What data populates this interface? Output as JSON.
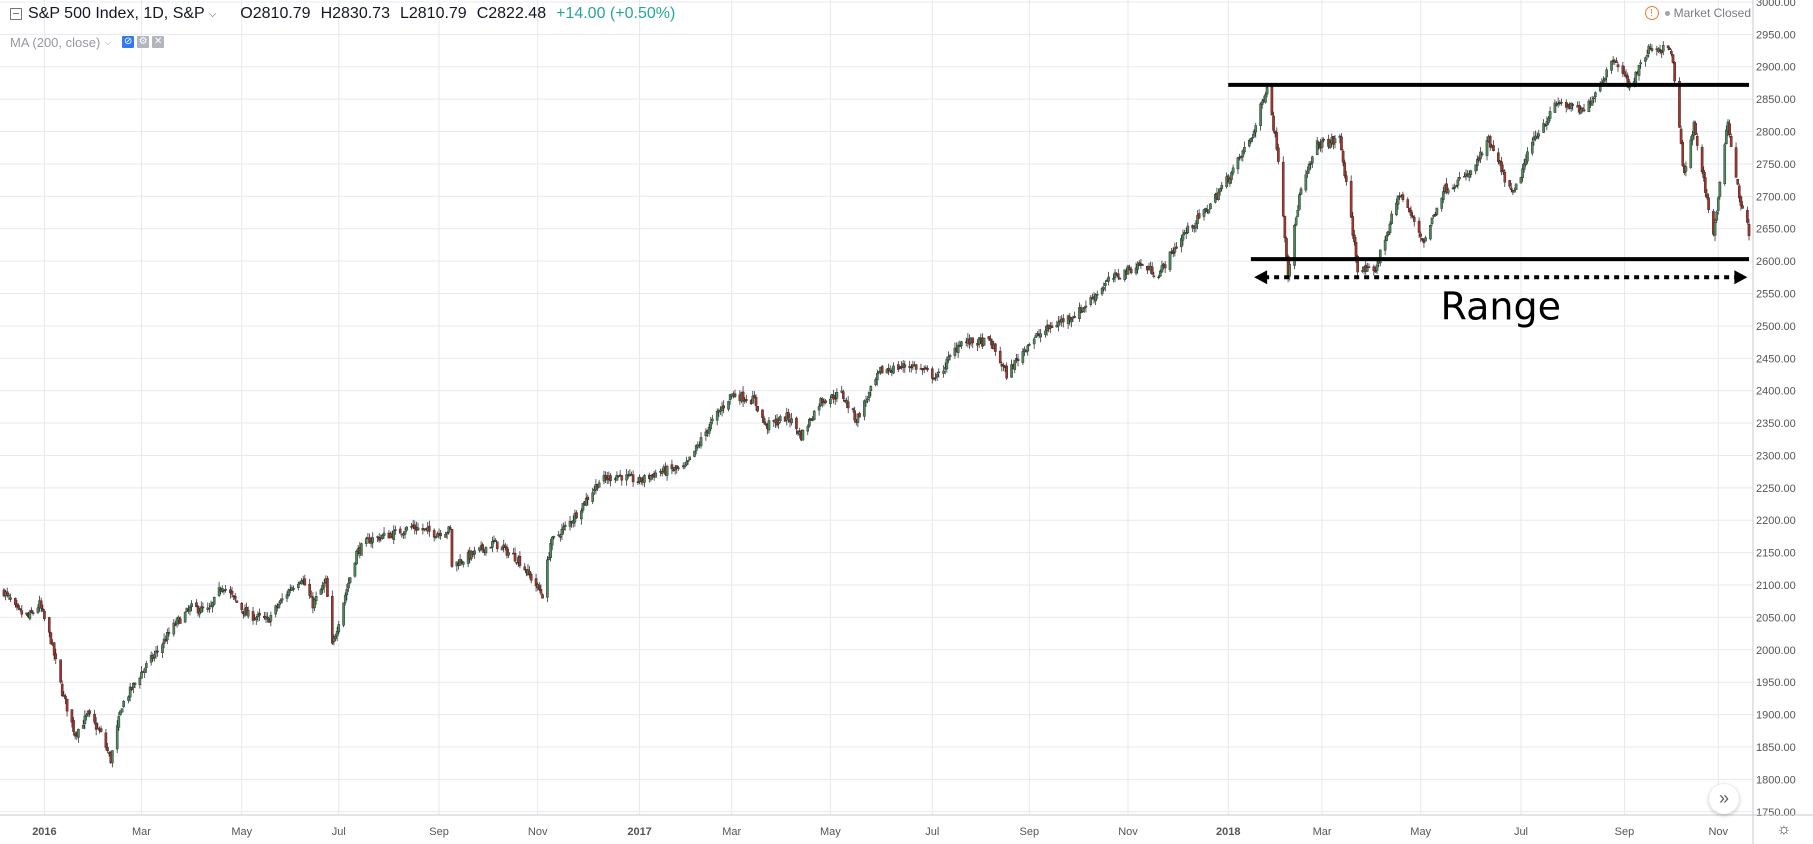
{
  "header": {
    "symbol": "S&P 500 Index, 1D, S&P",
    "open": "O2810.79",
    "high": "H2830.73",
    "low": "L2810.79",
    "close": "C2822.48",
    "change": "+14.00 (+0.50%)",
    "market_status": "Market Closed"
  },
  "indicator": {
    "label": "MA (200, close)"
  },
  "colors": {
    "up": "#4a8a5a",
    "down": "#a8332a",
    "grid": "#e8e9ed",
    "axis_text": "#555555",
    "annotation": "#000000"
  },
  "chart_data": {
    "type": "candlestick",
    "x_ticks": [
      {
        "label": "2016",
        "date": "2016-01-01",
        "bold": true
      },
      {
        "label": "Mar",
        "date": "2016-03-01"
      },
      {
        "label": "May",
        "date": "2016-05-02"
      },
      {
        "label": "Jul",
        "date": "2016-07-01"
      },
      {
        "label": "Sep",
        "date": "2016-09-01"
      },
      {
        "label": "Nov",
        "date": "2016-11-01"
      },
      {
        "label": "2017",
        "date": "2017-01-03",
        "bold": true
      },
      {
        "label": "Mar",
        "date": "2017-03-01"
      },
      {
        "label": "May",
        "date": "2017-05-01"
      },
      {
        "label": "Jul",
        "date": "2017-07-03"
      },
      {
        "label": "Sep",
        "date": "2017-09-01"
      },
      {
        "label": "Nov",
        "date": "2017-11-01"
      },
      {
        "label": "2018",
        "date": "2018-01-02",
        "bold": true
      },
      {
        "label": "Mar",
        "date": "2018-03-01"
      },
      {
        "label": "May",
        "date": "2018-05-01"
      },
      {
        "label": "Jul",
        "date": "2018-07-02"
      },
      {
        "label": "Sep",
        "date": "2018-09-04"
      },
      {
        "label": "Nov",
        "date": "2018-11-01"
      }
    ],
    "x_range": [
      "2015-12-07",
      "2018-11-20"
    ],
    "y_ticks": [
      "1750.00",
      "1800.00",
      "1850.00",
      "1900.00",
      "1950.00",
      "2000.00",
      "2050.00",
      "2100.00",
      "2150.00",
      "2200.00",
      "2250.00",
      "2300.00",
      "2350.00",
      "2400.00",
      "2450.00",
      "2500.00",
      "2550.00",
      "2600.00",
      "2650.00",
      "2700.00",
      "2750.00",
      "2800.00",
      "2850.00",
      "2900.00",
      "2950.00",
      "3000.00"
    ],
    "ylim": [
      1745,
      3003
    ],
    "close_path": [
      [
        "2015-12-07",
        2090
      ],
      [
        "2015-12-15",
        2060
      ],
      [
        "2015-12-22",
        2050
      ],
      [
        "2015-12-29",
        2070
      ],
      [
        "2016-01-05",
        2015
      ],
      [
        "2016-01-12",
        1935
      ],
      [
        "2016-01-20",
        1870
      ],
      [
        "2016-01-28",
        1900
      ],
      [
        "2016-02-05",
        1870
      ],
      [
        "2016-02-11",
        1830
      ],
      [
        "2016-02-18",
        1915
      ],
      [
        "2016-03-01",
        1965
      ],
      [
        "2016-03-10",
        1995
      ],
      [
        "2016-03-22",
        2040
      ],
      [
        "2016-04-01",
        2065
      ],
      [
        "2016-04-12",
        2060
      ],
      [
        "2016-04-20",
        2100
      ],
      [
        "2016-05-05",
        2055
      ],
      [
        "2016-05-18",
        2045
      ],
      [
        "2016-06-01",
        2095
      ],
      [
        "2016-06-08",
        2112
      ],
      [
        "2016-06-15",
        2070
      ],
      [
        "2016-06-23",
        2105
      ],
      [
        "2016-06-27",
        2005
      ],
      [
        "2016-07-05",
        2085
      ],
      [
        "2016-07-12",
        2150
      ],
      [
        "2016-07-20",
        2170
      ],
      [
        "2016-08-05",
        2180
      ],
      [
        "2016-08-15",
        2190
      ],
      [
        "2016-08-29",
        2180
      ],
      [
        "2016-09-08",
        2185
      ],
      [
        "2016-09-09",
        2130
      ],
      [
        "2016-09-20",
        2145
      ],
      [
        "2016-10-05",
        2165
      ],
      [
        "2016-10-20",
        2140
      ],
      [
        "2016-11-04",
        2085
      ],
      [
        "2016-11-09",
        2165
      ],
      [
        "2016-11-22",
        2200
      ],
      [
        "2016-12-09",
        2260
      ],
      [
        "2016-12-20",
        2270
      ],
      [
        "2017-01-03",
        2260
      ],
      [
        "2017-01-15",
        2275
      ],
      [
        "2017-01-31",
        2280
      ],
      [
        "2017-02-15",
        2345
      ],
      [
        "2017-03-01",
        2395
      ],
      [
        "2017-03-15",
        2385
      ],
      [
        "2017-03-22",
        2345
      ],
      [
        "2017-04-05",
        2360
      ],
      [
        "2017-04-13",
        2330
      ],
      [
        "2017-04-25",
        2385
      ],
      [
        "2017-05-08",
        2395
      ],
      [
        "2017-05-17",
        2355
      ],
      [
        "2017-06-01",
        2430
      ],
      [
        "2017-06-20",
        2440
      ],
      [
        "2017-07-06",
        2420
      ],
      [
        "2017-07-20",
        2475
      ],
      [
        "2017-08-08",
        2475
      ],
      [
        "2017-08-18",
        2425
      ],
      [
        "2017-09-01",
        2475
      ],
      [
        "2017-09-15",
        2500
      ],
      [
        "2017-10-01",
        2520
      ],
      [
        "2017-10-20",
        2570
      ],
      [
        "2017-11-08",
        2595
      ],
      [
        "2017-11-20",
        2580
      ],
      [
        "2017-12-05",
        2640
      ],
      [
        "2017-12-20",
        2680
      ],
      [
        "2018-01-05",
        2740
      ],
      [
        "2018-01-18",
        2800
      ],
      [
        "2018-01-26",
        2872
      ],
      [
        "2018-02-02",
        2760
      ],
      [
        "2018-02-08",
        2582
      ],
      [
        "2018-02-15",
        2700
      ],
      [
        "2018-02-26",
        2780
      ],
      [
        "2018-03-09",
        2785
      ],
      [
        "2018-03-12",
        2790
      ],
      [
        "2018-03-23",
        2590
      ],
      [
        "2018-04-02",
        2580
      ],
      [
        "2018-04-18",
        2705
      ],
      [
        "2018-05-03",
        2630
      ],
      [
        "2018-05-15",
        2710
      ],
      [
        "2018-06-01",
        2735
      ],
      [
        "2018-06-12",
        2785
      ],
      [
        "2018-06-27",
        2700
      ],
      [
        "2018-07-10",
        2790
      ],
      [
        "2018-07-25",
        2845
      ],
      [
        "2018-08-10",
        2830
      ],
      [
        "2018-08-29",
        2915
      ],
      [
        "2018-09-07",
        2870
      ],
      [
        "2018-09-20",
        2930
      ],
      [
        "2018-10-03",
        2925
      ],
      [
        "2018-10-11",
        2730
      ],
      [
        "2018-10-17",
        2810
      ],
      [
        "2018-10-29",
        2640
      ],
      [
        "2018-11-07",
        2815
      ],
      [
        "2018-11-14",
        2700
      ],
      [
        "2018-11-20",
        2645
      ]
    ],
    "annotations": {
      "resistance": {
        "value": 2872,
        "from": "2018-01-02",
        "to": "2018-11-20"
      },
      "support": {
        "value": 2603,
        "from": "2018-01-16",
        "to": "2018-11-20"
      },
      "range_arrow": {
        "value": 2575,
        "from": "2018-01-18",
        "to": "2018-11-19"
      },
      "range_label": "Range"
    }
  }
}
